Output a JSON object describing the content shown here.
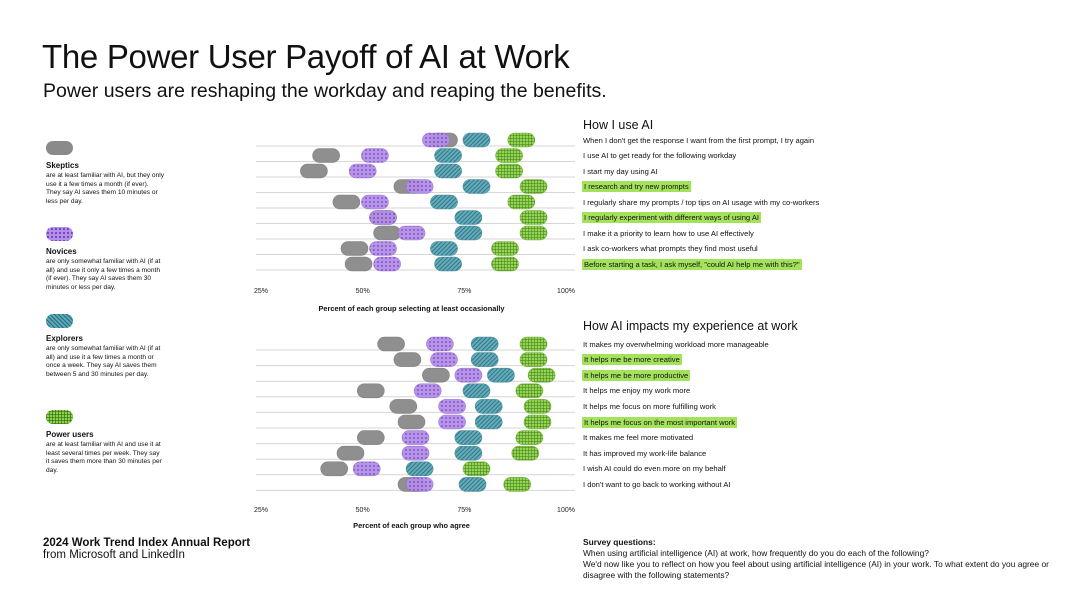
{
  "title": "The Power User Payoff of AI at Work",
  "subtitle": "Power users are reshaping the workday and reaping the benefits.",
  "legend": [
    {
      "key": "sk",
      "name": "Skeptics",
      "desc": "are at least familiar with AI, but they only use it a few times a month (if ever). They say AI saves them 10 minutes or less per day."
    },
    {
      "key": "nv",
      "name": "Novices",
      "desc": "are only somewhat familiar with AI (if at all) and use it only a few times a month (if ever). They say AI saves them 30 minutes or less per day."
    },
    {
      "key": "ex",
      "name": "Explorers",
      "desc": "are only somewhat familiar with AI (if at all) and use it a few times a month or once a week. They say AI saves them between 5 and 30 minutes per day."
    },
    {
      "key": "pw",
      "name": "Power users",
      "desc": "are at least familiar with AI and use it at least several times per week. They say it saves them more than 30 minutes per day."
    }
  ],
  "colors": {
    "skeptics": "#8a8a8a",
    "novices": "#b48ee8",
    "explorers": "#5aa8b8",
    "power": "#8ed44a",
    "highlight": "#a4e25c"
  },
  "chart_data": [
    {
      "type": "dot",
      "title": "How I use AI",
      "xlabel": "Percent of each group selecting at least occasionally",
      "xlim": [
        25,
        100
      ],
      "ticks": [
        "25%",
        "50%",
        "75%",
        "100%"
      ],
      "series_names": [
        "Skeptics",
        "Novices",
        "Explorers",
        "Power users"
      ],
      "rows": [
        {
          "label": "When I don't get the response I want from the first prompt, I try again",
          "hl": false,
          "values": [
            70,
            68,
            78,
            89
          ]
        },
        {
          "label": "I use AI to get ready for the following workday",
          "hl": false,
          "values": [
            41,
            53,
            71,
            86
          ]
        },
        {
          "label": "I start my day using AI",
          "hl": false,
          "values": [
            38,
            50,
            71,
            86
          ]
        },
        {
          "label": "I research and try new prompts",
          "hl": true,
          "values": [
            61,
            64,
            78,
            92
          ]
        },
        {
          "label": "I regularly share my prompts / top tips on AI usage with my co-workers",
          "hl": false,
          "values": [
            46,
            53,
            70,
            89
          ]
        },
        {
          "label": "I regularly experiment with different ways of using AI",
          "hl": true,
          "values": [
            55,
            55,
            76,
            92
          ]
        },
        {
          "label": "I make it a priority to learn how to use AI effectively",
          "hl": false,
          "values": [
            56,
            62,
            76,
            92
          ]
        },
        {
          "label": "I ask co-workers what prompts they find most useful",
          "hl": false,
          "values": [
            48,
            55,
            70,
            85
          ]
        },
        {
          "label": "Before starting a task, I ask myself, \"could AI help me with this?\"",
          "hl": true,
          "values": [
            49,
            56,
            71,
            85
          ]
        }
      ]
    },
    {
      "type": "dot",
      "title": "How AI impacts my experience at work",
      "xlabel": "Percent of each group who agree",
      "xlim": [
        25,
        100
      ],
      "ticks": [
        "25%",
        "50%",
        "75%",
        "100%"
      ],
      "series_names": [
        "Skeptics",
        "Novices",
        "Explorers",
        "Power users"
      ],
      "rows": [
        {
          "label": "It makes my overwhelming workload more manageable",
          "hl": false,
          "values": [
            57,
            69,
            80,
            92
          ]
        },
        {
          "label": "It helps me be more creative",
          "hl": true,
          "values": [
            61,
            70,
            80,
            92
          ]
        },
        {
          "label": "It helps me be more productive",
          "hl": true,
          "values": [
            68,
            76,
            84,
            94
          ]
        },
        {
          "label": "It helps me enjoy my work more",
          "hl": false,
          "values": [
            52,
            66,
            78,
            91
          ]
        },
        {
          "label": "It helps me focus on more fulfilling work",
          "hl": false,
          "values": [
            60,
            72,
            81,
            93
          ]
        },
        {
          "label": "It helps me focus on the most important work",
          "hl": true,
          "values": [
            62,
            72,
            81,
            93
          ]
        },
        {
          "label": "It makes me feel more motivated",
          "hl": false,
          "values": [
            52,
            63,
            76,
            91
          ]
        },
        {
          "label": "It has improved my work-life balance",
          "hl": false,
          "values": [
            47,
            63,
            76,
            90
          ]
        },
        {
          "label": "I wish AI could do even more on my behalf",
          "hl": false,
          "values": [
            43,
            51,
            64,
            78
          ]
        },
        {
          "label": "I don't want to go back to working without AI",
          "hl": false,
          "values": [
            62,
            64,
            77,
            88
          ]
        }
      ]
    }
  ],
  "report": {
    "line1": "2024 Work Trend Index Annual Report",
    "line2": "from Microsoft and LinkedIn"
  },
  "survey": {
    "heading": "Survey questions:",
    "q1": "When using artificial intelligence (AI) at work, how frequently do you do each of the following?",
    "q2": "We'd now like you to reflect on how you feel about using artificial intelligence (AI) in your work. To what extent do you agree or disagree with the following statements?"
  }
}
